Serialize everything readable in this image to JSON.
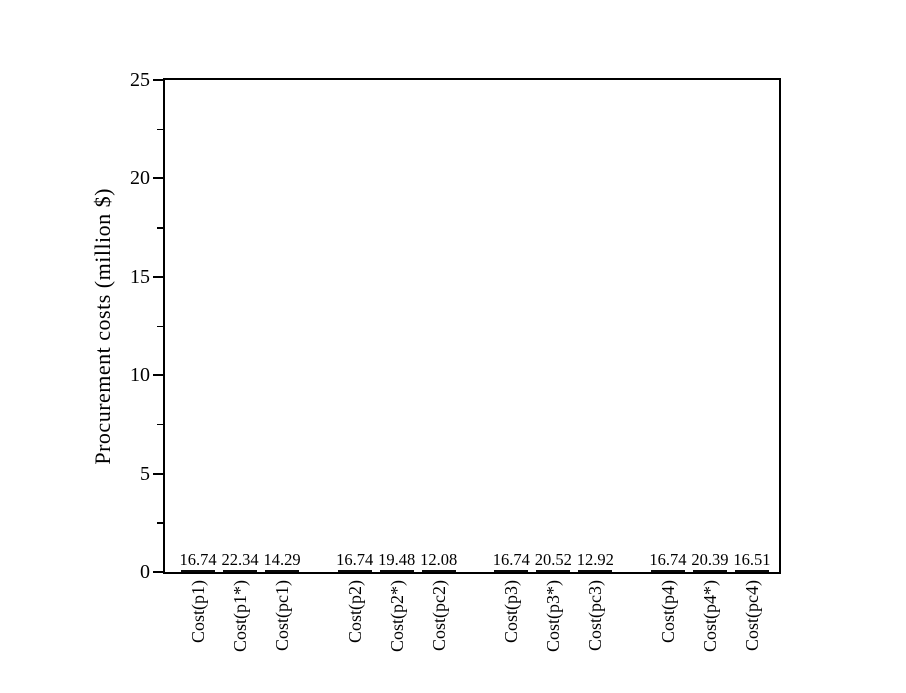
{
  "chart_data": {
    "type": "bar",
    "title": "",
    "xlabel": "",
    "ylabel": "Procurement costs (million $)",
    "ylim": [
      0,
      25
    ],
    "y_major_ticks": [
      0,
      5,
      10,
      15,
      20,
      25
    ],
    "y_minor_ticks": [
      2.5,
      7.5,
      12.5,
      17.5,
      22.5
    ],
    "grid": false,
    "legend": "none",
    "bar_fill": "#ffffff",
    "bar_edge_color": "#000000",
    "bar_hatch": "forward-diagonal",
    "groups": [
      {
        "bars": [
          {
            "label": "Cost(p1)",
            "value": 16.74,
            "value_label": "16.74"
          },
          {
            "label": "Cost(p1*)",
            "value": 22.34,
            "value_label": "22.34"
          },
          {
            "label": "Cost(pc1)",
            "value": 14.29,
            "value_label": "14.29"
          }
        ]
      },
      {
        "bars": [
          {
            "label": "Cost(p2)",
            "value": 16.74,
            "value_label": "16.74"
          },
          {
            "label": "Cost(p2*)",
            "value": 19.48,
            "value_label": "19.48"
          },
          {
            "label": "Cost(pc2)",
            "value": 12.08,
            "value_label": "12.08"
          }
        ]
      },
      {
        "bars": [
          {
            "label": "Cost(p3)",
            "value": 16.74,
            "value_label": "16.74"
          },
          {
            "label": "Cost(p3*)",
            "value": 20.52,
            "value_label": "20.52"
          },
          {
            "label": "Cost(pc3)",
            "value": 12.92,
            "value_label": "12.92"
          }
        ]
      },
      {
        "bars": [
          {
            "label": "Cost(p4)",
            "value": 16.74,
            "value_label": "16.74"
          },
          {
            "label": "Cost(p4*)",
            "value": 20.39,
            "value_label": "20.39"
          },
          {
            "label": "Cost(pc4)",
            "value": 16.51,
            "value_label": "16.51"
          }
        ]
      }
    ]
  }
}
